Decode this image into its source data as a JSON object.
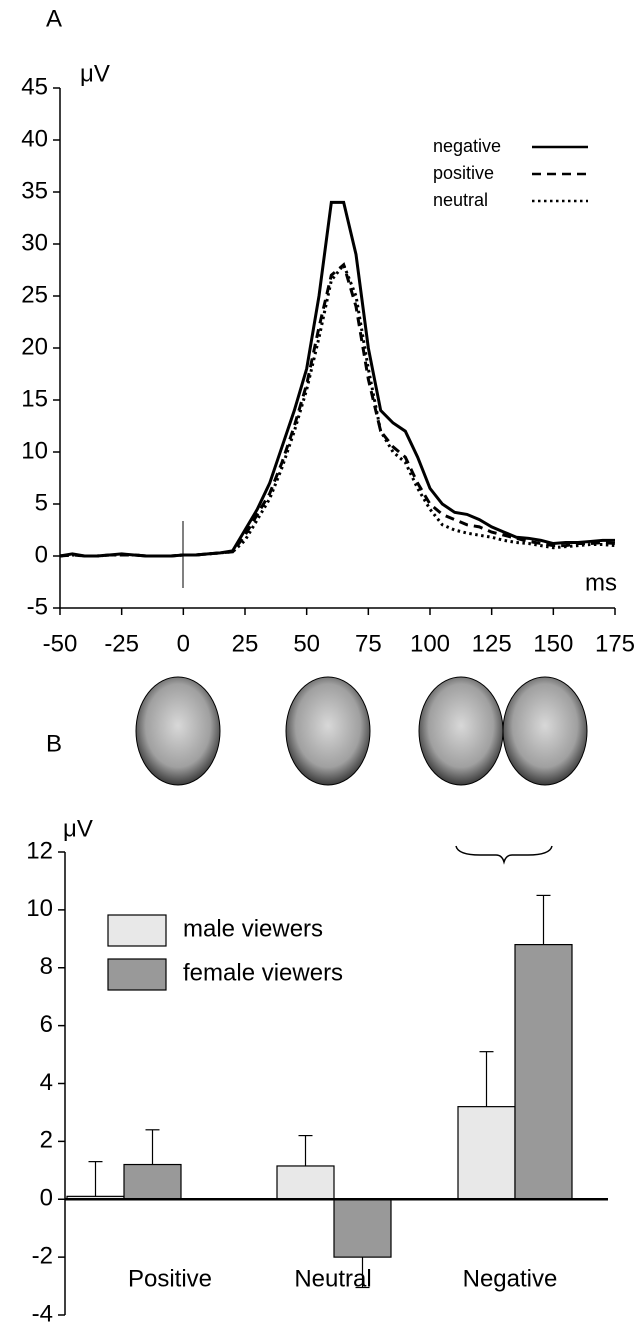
{
  "chart_data": [
    {
      "type": "line",
      "panel_label": "A",
      "y_label": "μV",
      "x_label": "ms",
      "x": [
        -50,
        -45,
        -40,
        -35,
        -30,
        -25,
        -20,
        -15,
        -10,
        -5,
        0,
        5,
        10,
        15,
        20,
        25,
        30,
        35,
        40,
        45,
        50,
        55,
        60,
        65,
        70,
        75,
        80,
        85,
        90,
        95,
        100,
        105,
        110,
        115,
        120,
        125,
        130,
        135,
        140,
        145,
        150,
        155,
        160,
        165,
        170,
        175
      ],
      "xlim": [
        -50,
        175
      ],
      "xticks": [
        -50,
        -25,
        0,
        25,
        50,
        75,
        100,
        125,
        150,
        175
      ],
      "ylim": [
        -5,
        45
      ],
      "yticks": [
        -5,
        0,
        5,
        10,
        15,
        20,
        25,
        30,
        35,
        40,
        45
      ],
      "series": [
        {
          "name": "negative",
          "color": "#000000",
          "dash": "solid",
          "values": [
            0,
            0.2,
            0,
            0,
            0.1,
            0.2,
            0.1,
            0,
            0,
            0,
            0.1,
            0.1,
            0.2,
            0.3,
            0.5,
            2.5,
            4.5,
            7,
            10.5,
            14,
            18,
            25,
            34,
            34,
            29,
            20,
            14,
            12.8,
            12,
            9.5,
            6.5,
            5,
            4.2,
            4,
            3.5,
            2.8,
            2.3,
            1.8,
            1.7,
            1.5,
            1.2,
            1.3,
            1.3,
            1.4,
            1.5,
            1.5
          ]
        },
        {
          "name": "positive",
          "color": "#000000",
          "dash": "dashed",
          "values": [
            0,
            0.1,
            0,
            0,
            0.1,
            0.1,
            0.1,
            0,
            0,
            0,
            0.1,
            0.1,
            0.2,
            0.3,
            0.4,
            2,
            4,
            6,
            9,
            12.5,
            16.5,
            22,
            27,
            28,
            24,
            17,
            12,
            10.5,
            9.5,
            7,
            5,
            4,
            3.5,
            3,
            2.8,
            2.3,
            2,
            1.7,
            1.4,
            1.2,
            1,
            1,
            1.2,
            1.2,
            1.3,
            1.2
          ]
        },
        {
          "name": "neutral",
          "color": "#000000",
          "dash": "dotted",
          "values": [
            0,
            0.1,
            0,
            0,
            0.1,
            0.1,
            0.1,
            0,
            0,
            0,
            0.1,
            0.1,
            0.2,
            0.3,
            0.4,
            1.5,
            3.5,
            5.5,
            8.5,
            12,
            16,
            21,
            26.5,
            28,
            25,
            18,
            12,
            10,
            9,
            6.5,
            4.5,
            3,
            2.5,
            2.2,
            2,
            1.8,
            1.5,
            1.3,
            1.2,
            1,
            0.8,
            0.9,
            1,
            1.1,
            1.1,
            1
          ]
        }
      ]
    },
    {
      "type": "bar",
      "panel_label": "B",
      "y_label": "μV",
      "categories": [
        "Positive",
        "Neutral",
        "Negative"
      ],
      "ylim": [
        -4,
        12
      ],
      "yticks": [
        -4,
        -2,
        0,
        2,
        4,
        6,
        8,
        10,
        12
      ],
      "series": [
        {
          "name": "male viewers",
          "color": "#e8e8e8",
          "values": [
            0.1,
            1.15,
            3.2
          ],
          "errors": [
            1.2,
            1.05,
            1.9
          ]
        },
        {
          "name": "female viewers",
          "color": "#999999",
          "values": [
            1.2,
            -2.0,
            8.8
          ],
          "errors": [
            1.2,
            1.05,
            1.7
          ]
        }
      ]
    }
  ]
}
